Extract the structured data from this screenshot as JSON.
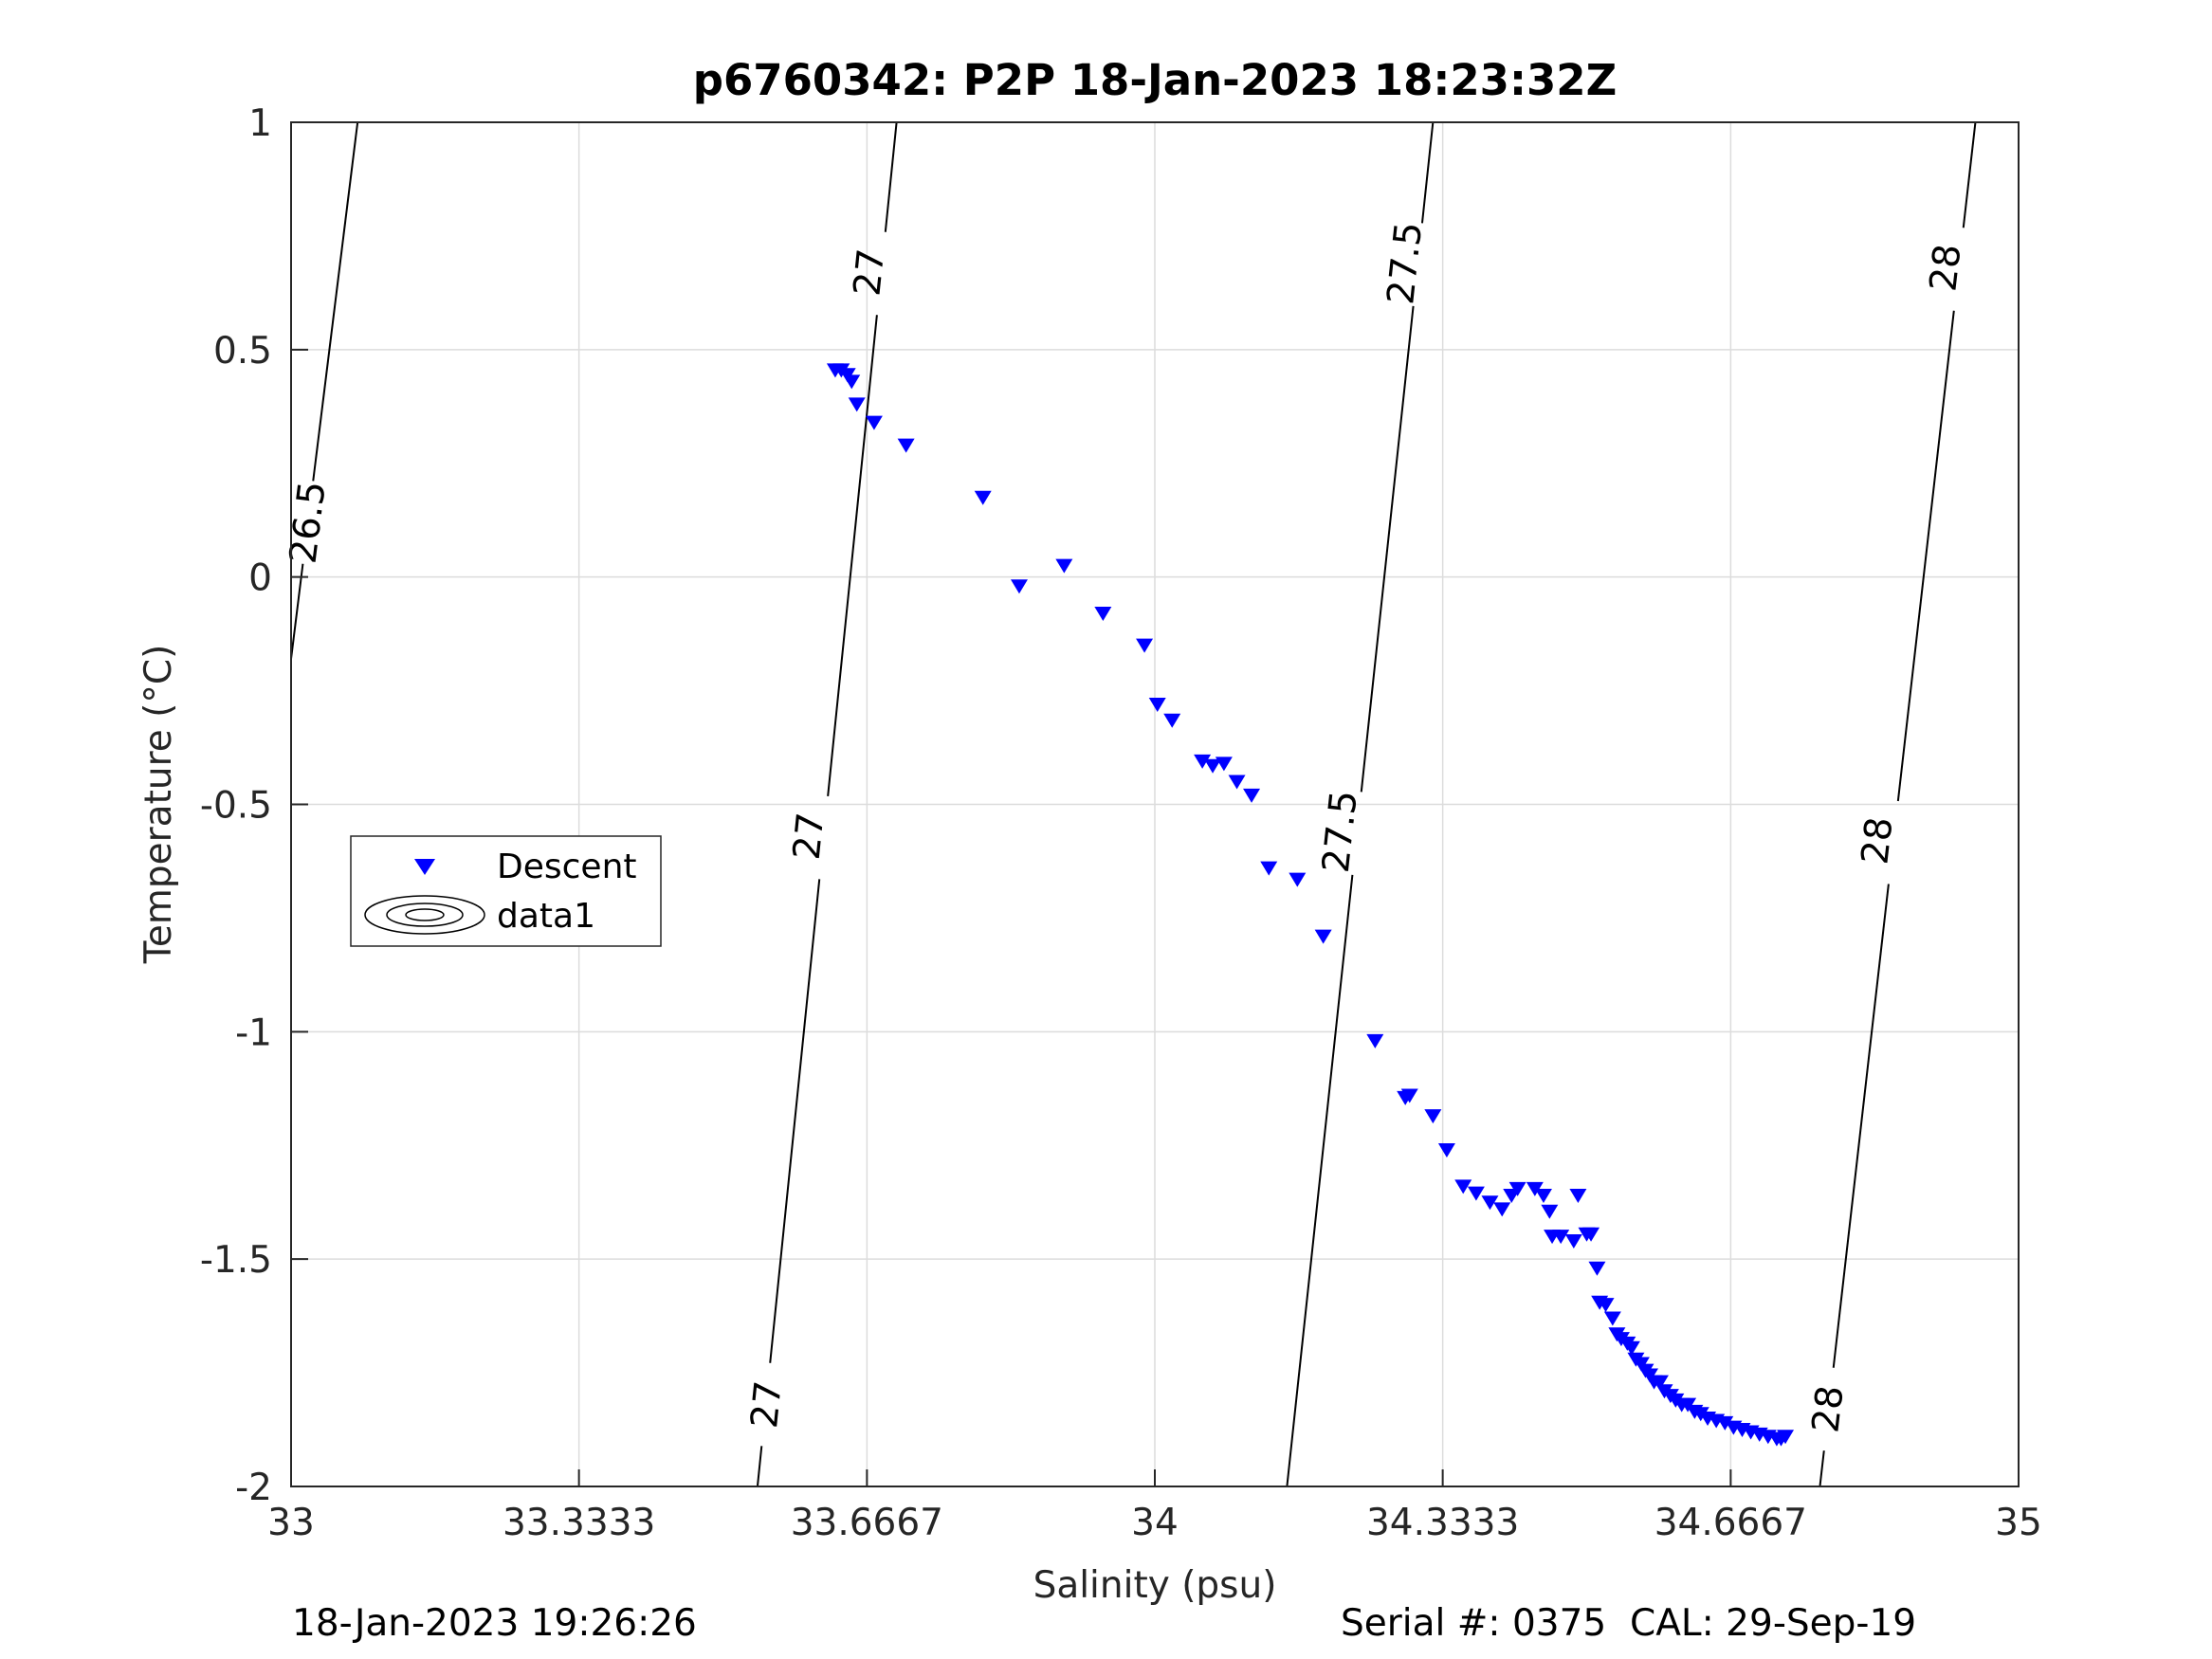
{
  "chart_data": {
    "type": "scatter",
    "title": "p6760342: P2P 18-Jan-2023 18:23:32Z",
    "xlabel": "Salinity (psu)",
    "ylabel": "Temperature (°C)",
    "xlim": [
      33,
      35
    ],
    "ylim": [
      -2,
      1
    ],
    "x_ticks": [
      33,
      33.3333,
      33.6667,
      34,
      34.3333,
      34.6667,
      35
    ],
    "x_tick_labels": [
      "33",
      "33.3333",
      "33.6667",
      "34",
      "34.3333",
      "34.6667",
      "35"
    ],
    "y_ticks": [
      -2,
      -1.5,
      -1,
      -0.5,
      0,
      0.5,
      1
    ],
    "y_tick_labels": [
      "-2",
      "-1.5",
      "-1",
      "-0.5",
      "0",
      "0.5",
      "1"
    ],
    "grid": true,
    "legend": {
      "placement": "middle-left",
      "entries": [
        "Descent",
        "data1"
      ]
    },
    "marker_color": "#0000ff",
    "contour_color": "#000000",
    "series": [
      {
        "name": "Descent",
        "marker": "triangle-down",
        "x": [
          33.63,
          33.637,
          33.644,
          33.649,
          33.655,
          33.675,
          33.712,
          33.801,
          33.843,
          33.895,
          33.94,
          33.988,
          34.003,
          34.02,
          34.055,
          34.067,
          34.08,
          34.095,
          34.112,
          34.132,
          34.165,
          34.195,
          34.255,
          34.29,
          34.295,
          34.322,
          34.338,
          34.357,
          34.372,
          34.388,
          34.402,
          34.413,
          34.45,
          34.457,
          34.46,
          34.47,
          34.485,
          34.49,
          34.44,
          34.42,
          34.5,
          34.505,
          34.512,
          34.515,
          34.522,
          34.53,
          34.535,
          34.54,
          34.547,
          34.552,
          34.557,
          34.563,
          34.568,
          34.573,
          34.578,
          34.585,
          34.59,
          34.597,
          34.603,
          34.61,
          34.617,
          34.625,
          34.632,
          34.64,
          34.65,
          34.66,
          34.67,
          34.68,
          34.69,
          34.7,
          34.71,
          34.72,
          34.725,
          34.73
        ],
        "y": [
          0.455,
          0.455,
          0.445,
          0.43,
          0.38,
          0.34,
          0.29,
          0.175,
          -0.02,
          0.025,
          -0.08,
          -0.15,
          -0.28,
          -0.315,
          -0.405,
          -0.415,
          -0.41,
          -0.45,
          -0.48,
          -0.64,
          -0.665,
          -0.79,
          -1.02,
          -1.145,
          -1.14,
          -1.185,
          -1.26,
          -1.34,
          -1.355,
          -1.375,
          -1.39,
          -1.36,
          -1.36,
          -1.395,
          -1.45,
          -1.45,
          -1.46,
          -1.36,
          -1.345,
          -1.345,
          -1.445,
          -1.445,
          -1.52,
          -1.595,
          -1.6,
          -1.63,
          -1.665,
          -1.675,
          -1.685,
          -1.695,
          -1.72,
          -1.73,
          -1.745,
          -1.755,
          -1.77,
          -1.77,
          -1.79,
          -1.8,
          -1.81,
          -1.82,
          -1.82,
          -1.835,
          -1.84,
          -1.85,
          -1.855,
          -1.86,
          -1.87,
          -1.875,
          -1.88,
          -1.885,
          -1.89,
          -1.895,
          -1.895,
          -1.89
        ]
      }
    ],
    "density_contours": [
      {
        "level": "26.5",
        "points": [
          [
            33.0,
            -0.18
          ],
          [
            33.077,
            1.0
          ]
        ],
        "labels": [
          [
            33.02,
            0.12
          ]
        ]
      },
      {
        "level": "27",
        "points": [
          [
            33.54,
            -2.0
          ],
          [
            33.701,
            1.0
          ]
        ],
        "labels": [
          [
            33.551,
            -1.82
          ],
          [
            33.6,
            -0.57
          ],
          [
            33.67,
            0.67
          ]
        ]
      },
      {
        "level": "27.5",
        "points": [
          [
            34.153,
            -2.0
          ],
          [
            34.322,
            1.0
          ]
        ],
        "labels": [
          [
            34.215,
            -0.56
          ],
          [
            34.29,
            0.69
          ]
        ]
      },
      {
        "level": "28",
        "points": [
          [
            34.77,
            -2.0
          ],
          [
            34.95,
            1.0
          ]
        ],
        "labels": [
          [
            34.78,
            -1.83
          ],
          [
            34.837,
            -0.58
          ],
          [
            34.916,
            0.68
          ]
        ]
      }
    ]
  },
  "footer": {
    "timestamp": "18-Jan-2023 19:26:26",
    "serial": "Serial #: 0375  CAL: 29-Sep-19"
  }
}
